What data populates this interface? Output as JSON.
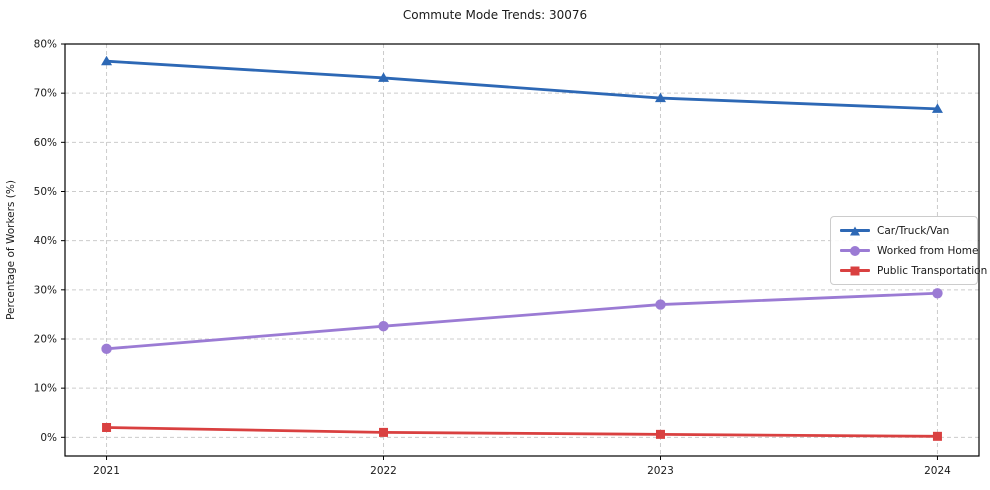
{
  "chart_data": {
    "type": "line",
    "title": "Commute Mode Trends: 30076",
    "xlabel": "",
    "ylabel": "Percentage of Workers (%)",
    "x": [
      2021,
      2022,
      2023,
      2024
    ],
    "x_tick_labels": [
      "2021",
      "2022",
      "2023",
      "2024"
    ],
    "xlim": [
      2020.85,
      2024.15
    ],
    "ylim": [
      -3.8,
      80
    ],
    "yticks": [
      0,
      10,
      20,
      30,
      40,
      50,
      60,
      70,
      80
    ],
    "ytick_suffix": "%",
    "grid": "dashed-both-axes",
    "grid_color": "#cccccc",
    "legend_position": "center-right",
    "series": [
      {
        "name": "Car/Truck/Van",
        "color": "#2d68b5",
        "marker": "triangle",
        "values": [
          76.5,
          73.1,
          69.0,
          66.8
        ]
      },
      {
        "name": "Worked from Home",
        "color": "#9b7bd4",
        "marker": "circle",
        "values": [
          18.0,
          22.6,
          27.0,
          29.3
        ]
      },
      {
        "name": "Public Transportation",
        "color": "#d94040",
        "marker": "square",
        "values": [
          2.0,
          1.0,
          0.6,
          0.2
        ]
      }
    ]
  }
}
